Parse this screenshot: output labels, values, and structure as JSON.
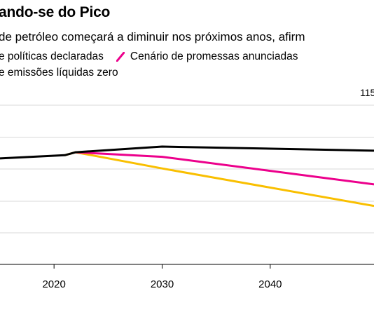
{
  "header": {
    "title": "ando-se do Pico",
    "subtitle": "de petróleo começará a diminuir nos próximos anos, afirm"
  },
  "legend": [
    {
      "label": "e políticas declaradas",
      "color": "#000000"
    },
    {
      "label": "Cenário de promessas anunciadas",
      "color": "#ec008c"
    },
    {
      "label": "e emissões líquidas zero",
      "color": "#f9bf00"
    }
  ],
  "colors": {
    "grid": "#d9d9d9",
    "axis": "#000000"
  },
  "chart_data": {
    "type": "line",
    "title": "ando-se do Pico",
    "subtitle": "de petróleo começará a diminuir nos próximos anos, afirm",
    "xlabel": "",
    "ylabel": "",
    "xlim": [
      2015,
      2049.6
    ],
    "ylim": [
      50,
      120
    ],
    "x_ticks": [
      2020,
      2030,
      2040
    ],
    "y_tick_labels": [
      "115"
    ],
    "grid": true,
    "legend_position": "top-left",
    "series": [
      {
        "name": "e políticas declaradas",
        "color": "#000000",
        "x": [
          2015,
          2021,
          2022,
          2030,
          2049.6
        ],
        "y": [
          96.6,
          98.0,
          99.3,
          101.8,
          100.0
        ]
      },
      {
        "name": "Cenário de promessas anunciadas",
        "color": "#ec008c",
        "x": [
          2022,
          2030,
          2049.6
        ],
        "y": [
          99.3,
          97.3,
          85.2
        ]
      },
      {
        "name": "e emissões líquidas zero",
        "color": "#f9bf00",
        "x": [
          2021,
          2022,
          2030,
          2049.6
        ],
        "y": [
          98.0,
          99.3,
          92.2,
          75.7
        ]
      }
    ]
  }
}
